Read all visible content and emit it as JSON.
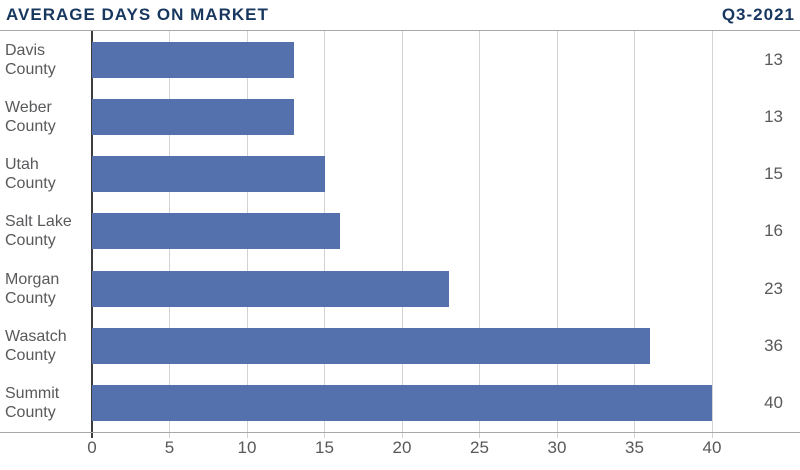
{
  "header": {
    "title": "AVERAGE DAYS ON MARKET",
    "period": "Q3-2021"
  },
  "chart_data": {
    "type": "bar",
    "orientation": "horizontal",
    "title": "AVERAGE DAYS ON MARKET",
    "subtitle": "Q3-2021",
    "categories": [
      "Davis County",
      "Weber County",
      "Utah County",
      "Salt Lake County",
      "Morgan County",
      "Wasatch County",
      "Summit County"
    ],
    "values": [
      13,
      13,
      15,
      16,
      23,
      36,
      40
    ],
    "value_labels": [
      "13",
      "13",
      "15",
      "16",
      "23",
      "36",
      "40"
    ],
    "xlabel": "",
    "ylabel": "",
    "xlim": [
      0,
      40
    ],
    "x_ticks": [
      0,
      5,
      10,
      15,
      20,
      25,
      30,
      35,
      40
    ],
    "grid": true,
    "legend": false,
    "colors": {
      "bar": "#5571ad",
      "title": "#17375e",
      "text": "#58595b",
      "gridline": "#d3d3d3",
      "zero_axis": "#3d3d3d",
      "frame_line": "#a8a8a8"
    }
  }
}
